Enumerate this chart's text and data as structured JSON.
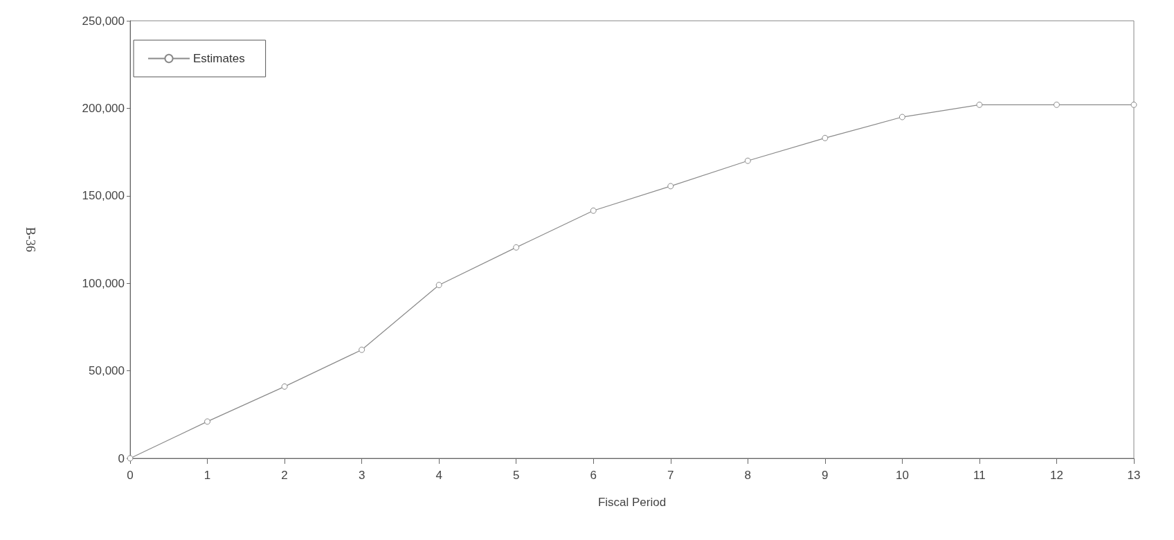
{
  "chart_data": {
    "type": "line",
    "xlabel": "Fiscal Period",
    "ylabel": "B-36",
    "x": [
      0,
      1,
      2,
      3,
      4,
      5,
      6,
      7,
      8,
      9,
      10,
      11,
      12,
      13
    ],
    "series": [
      {
        "name": "Estimates",
        "color": "#8a8a8a",
        "values": [
          0,
          21000,
          41000,
          62000,
          99000,
          120500,
          141500,
          155500,
          170000,
          183000,
          195000,
          202000,
          202000,
          202000
        ]
      }
    ],
    "xlim": [
      0,
      13
    ],
    "xticks": [
      0,
      1,
      2,
      3,
      4,
      5,
      6,
      7,
      8,
      9,
      10,
      11,
      12,
      13
    ],
    "ylim": [
      0,
      250000
    ],
    "yticks": [
      0,
      {
        "value": 50000,
        "label": "50,000"
      },
      {
        "value": 100000,
        "label": "100,000"
      },
      {
        "value": 150000,
        "label": "150,000"
      },
      {
        "value": 200000,
        "label": "200,000"
      },
      {
        "value": 250000,
        "label": "250,000"
      }
    ],
    "grid": false,
    "legend": "top left",
    "marker": "circle",
    "line_style": "solid"
  }
}
